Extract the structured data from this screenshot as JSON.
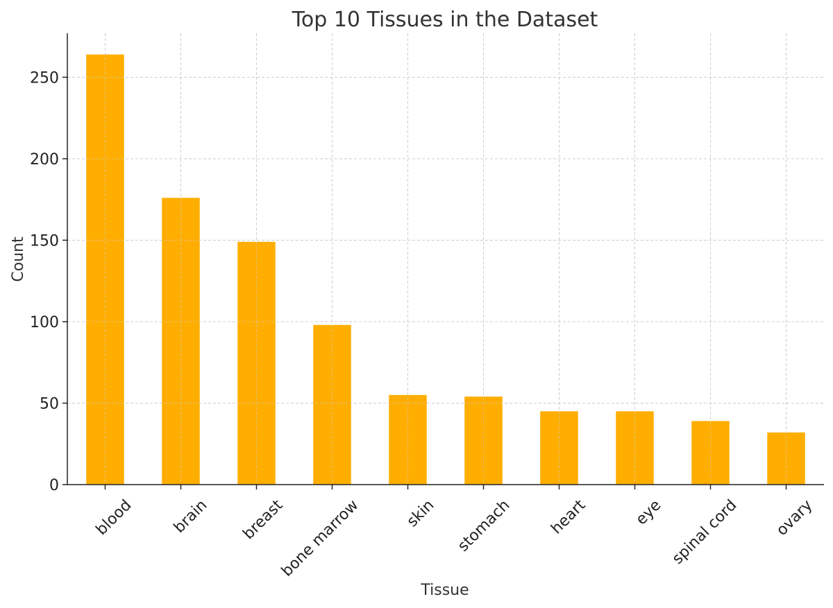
{
  "chart_data": {
    "type": "bar",
    "title": "Top 10 Tissues in the Dataset",
    "xlabel": "Tissue",
    "ylabel": "Count",
    "categories": [
      "blood",
      "brain",
      "breast",
      "bone marrow",
      "skin",
      "stomach",
      "heart",
      "eye",
      "spinal cord",
      "ovary"
    ],
    "values": [
      264,
      176,
      149,
      98,
      55,
      54,
      45,
      45,
      39,
      32
    ],
    "ylim": [
      0,
      277
    ],
    "yticks": [
      0,
      50,
      100,
      150,
      200,
      250
    ],
    "grid": true,
    "bar_color": "#FFAE00"
  }
}
